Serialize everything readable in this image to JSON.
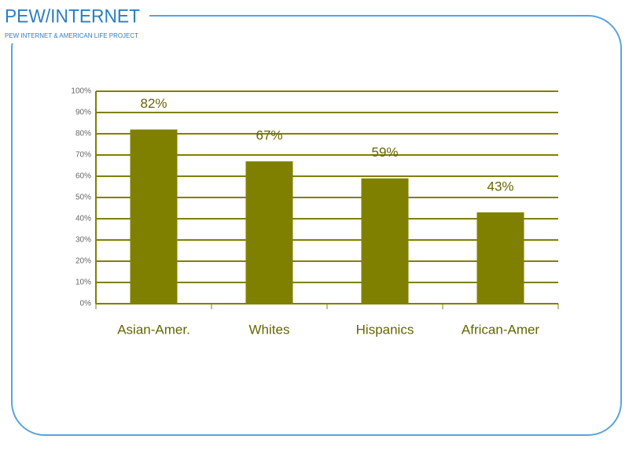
{
  "header": {
    "logo": "PEW/INTERNET",
    "tagline": "PEW INTERNET & AMERICAN LIFE PROJECT"
  },
  "chart_data": {
    "type": "bar",
    "categories": [
      "Asian-Amer.",
      "Whites",
      "Hispanics",
      "African-Amer"
    ],
    "values": [
      82,
      67,
      59,
      43
    ],
    "value_labels": [
      "82%",
      "67%",
      "59%",
      "43%"
    ],
    "color": "#808000",
    "ylim": [
      0,
      100
    ],
    "yticks": [
      {
        "value": 0,
        "label": "0%"
      },
      {
        "value": 10,
        "label": "10%"
      },
      {
        "value": 20,
        "label": "20%"
      },
      {
        "value": 30,
        "label": "30%"
      },
      {
        "value": 40,
        "label": "40%"
      },
      {
        "value": 50,
        "label": "50%"
      },
      {
        "value": 60,
        "label": "60%"
      },
      {
        "value": 70,
        "label": "70%"
      },
      {
        "value": 80,
        "label": "80%"
      },
      {
        "value": 90,
        "label": "90%"
      },
      {
        "value": 100,
        "label": "100%"
      }
    ],
    "grid": true
  }
}
